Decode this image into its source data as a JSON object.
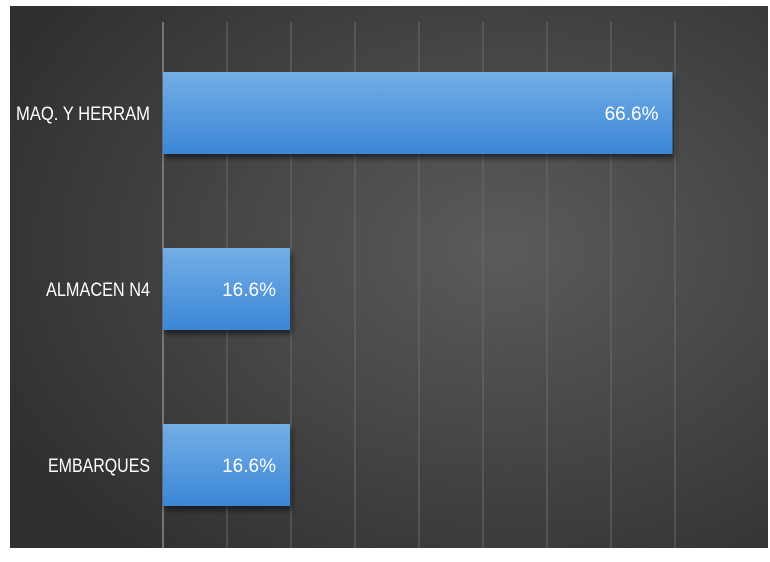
{
  "chart_data": {
    "type": "bar",
    "orientation": "horizontal",
    "title": "",
    "xlabel": "",
    "ylabel": "",
    "categories": [
      "MAQ. Y HERRAM",
      "ALMACEN N4",
      "EMBARQUES"
    ],
    "values": [
      66.6,
      16.6,
      16.6
    ],
    "data_labels": [
      "66.6%",
      "16.6%",
      "16.6%"
    ],
    "xlim": [
      0,
      75
    ],
    "grid": true,
    "legend": "none",
    "colors": {
      "background_dark": "#2f2f2f",
      "background_light": "#5b5b5b",
      "bar_top": "#73aee6",
      "bar_bottom": "#3b86d6",
      "grid": "#6a6a6a",
      "label_text": "#ffffff"
    }
  }
}
